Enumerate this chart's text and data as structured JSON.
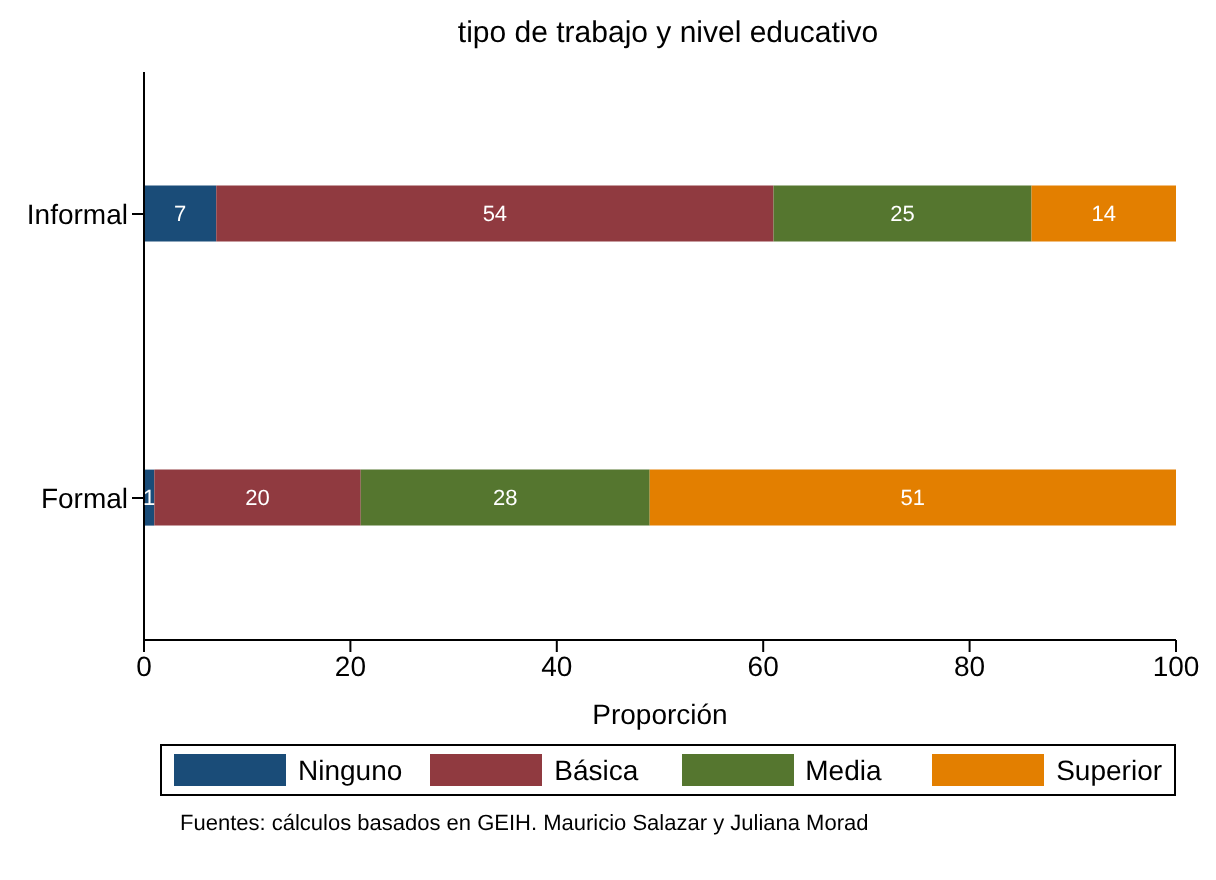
{
  "chart_data": {
    "type": "bar",
    "orientation": "horizontal",
    "stacked": true,
    "title": "tipo de trabajo y nivel educativo",
    "xlabel": "Proporción",
    "categories": [
      "Informal",
      "Formal"
    ],
    "series": [
      {
        "name": "Ninguno",
        "color": "#1a4c78",
        "values": [
          7,
          1
        ]
      },
      {
        "name": "Básica",
        "color": "#903a40",
        "values": [
          54,
          20
        ]
      },
      {
        "name": "Media",
        "color": "#55762f",
        "values": [
          25,
          28
        ]
      },
      {
        "name": "Superior",
        "color": "#e37f00",
        "values": [
          14,
          51
        ]
      }
    ],
    "xlim": [
      0,
      100
    ],
    "xticks": [
      0,
      20,
      40,
      60,
      80,
      100
    ],
    "grid": false,
    "legend": "bottom",
    "data_labels": true,
    "annotations": [
      "Fuentes: cálculos basados en GEIH. Mauricio Salazar y Juliana Morad"
    ]
  }
}
